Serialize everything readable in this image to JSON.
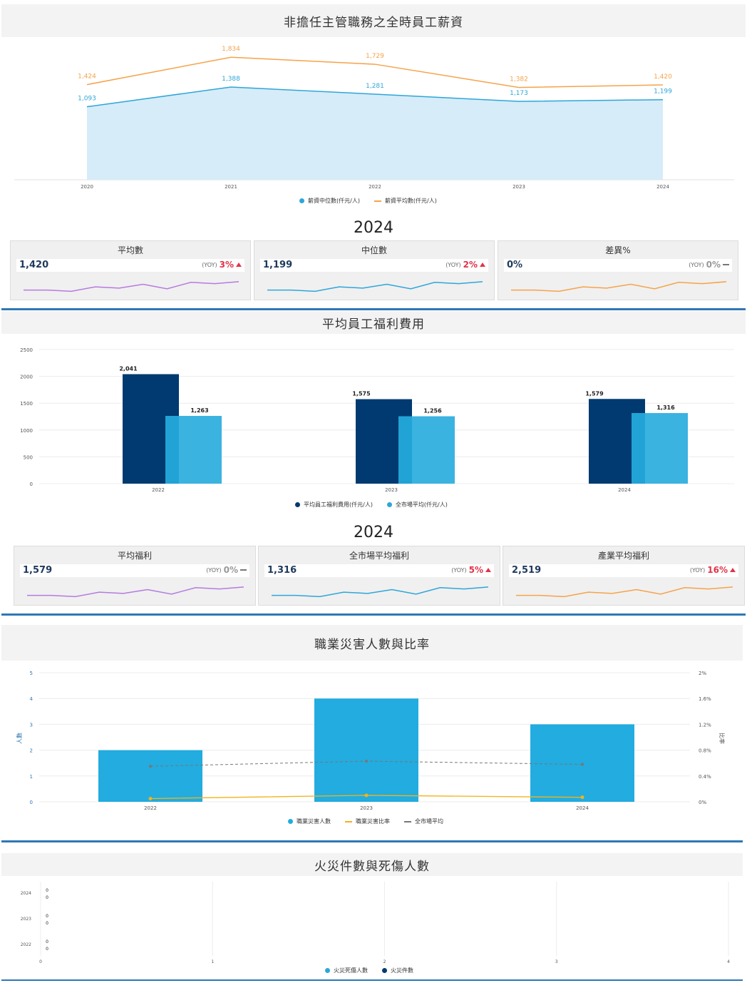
{
  "salary_section": {
    "title": "非擔任主管職務之全時員工薪資",
    "legend": {
      "median": "薪資中位數(仟元/人)",
      "mean": "薪資平均數(仟元/人)"
    },
    "kpi_year": "2024",
    "kpis": [
      {
        "title": "平均數",
        "value": "1,420",
        "yoy_label": "(YOY)",
        "yoy": "3%",
        "trend": "up",
        "color": "#b57be0"
      },
      {
        "title": "中位數",
        "value": "1,199",
        "yoy_label": "(YOY)",
        "yoy": "2%",
        "trend": "up",
        "color": "#2ea6d9"
      },
      {
        "title": "差異%",
        "value": "0%",
        "yoy_label": "(YOY)",
        "yoy": "0%",
        "trend": "flat",
        "color": "#f5a34a"
      }
    ]
  },
  "welfare_section": {
    "title": "平均員工福利費用",
    "legend": {
      "company": "平均員工福利費用(仟元/人)",
      "market": "全市場平均(仟元/人)"
    },
    "kpi_year": "2024",
    "kpis": [
      {
        "title": "平均福利",
        "value": "1,579",
        "yoy_label": "(YOY)",
        "yoy": "0%",
        "trend": "flat",
        "color": "#b57be0"
      },
      {
        "title": "全市場平均福利",
        "value": "1,316",
        "yoy_label": "(YOY)",
        "yoy": "5%",
        "trend": "up",
        "color": "#2ea6d9"
      },
      {
        "title": "產業平均福利",
        "value": "2,519",
        "yoy_label": "(YOY)",
        "yoy": "16%",
        "trend": "up",
        "color": "#f5a34a"
      }
    ]
  },
  "injury_section": {
    "title": "職業災害人數與比率",
    "legend": {
      "count": "職業災害人數",
      "rate": "職業災害比率",
      "market": "全市場平均"
    }
  },
  "fire_section": {
    "title": "火災件數與死傷人數",
    "legend": {
      "casualties": "火災死傷人數",
      "fires": "火災件數"
    }
  },
  "colors": {
    "orange": "#f5a34a",
    "blue": "#2ea6d9",
    "area": "#d6ecf8",
    "navy": "#003a70",
    "bar_light": "#3bb3e0",
    "bar_mid": "#22a3d6",
    "injury_bar": "#22acdf",
    "injury_rate": "#f2b21b",
    "market_line": "#777777",
    "divider": "#2e77b5"
  },
  "chart_data": [
    {
      "type": "area",
      "x": [
        "2020",
        "2021",
        "2022",
        "2023",
        "2024"
      ],
      "series": [
        {
          "name": "薪資中位數(仟元/人)",
          "type": "area",
          "values": [
            1093,
            1388,
            1281,
            1173,
            1199
          ],
          "labels": [
            "1,093",
            "1,388",
            "1,281",
            "1,173",
            "1,199"
          ]
        },
        {
          "name": "薪資平均數(仟元/人)",
          "type": "line",
          "values": [
            1424,
            1834,
            1729,
            1382,
            1420
          ],
          "labels": [
            "1,424",
            "1,834",
            "1,729",
            "1,382",
            "1,420"
          ]
        }
      ],
      "ylim": [
        0,
        2050
      ],
      "grid": false,
      "legend": "bottom"
    },
    {
      "type": "bar",
      "categories": [
        "2022",
        "2023",
        "2024"
      ],
      "series": [
        {
          "name": "平均員工福利費用(仟元/人)",
          "values": [
            2041,
            1575,
            1579
          ],
          "labels": [
            "2,041",
            "1,575",
            "1,579"
          ]
        },
        {
          "name": "全市場平均(仟元/人)",
          "values": [
            1263,
            1256,
            1316
          ],
          "labels": [
            "1,263",
            "1,256",
            "1,316"
          ]
        }
      ],
      "yticks": [
        "0",
        "500",
        "1000",
        "1500",
        "2000",
        "2500"
      ],
      "ylim": [
        0,
        2500
      ],
      "grid": true,
      "legend": "bottom"
    },
    {
      "type": "bar",
      "categories": [
        "2022",
        "2023",
        "2024"
      ],
      "series": [
        {
          "name": "職業災害人數",
          "axis": "left",
          "values": [
            2,
            4,
            3
          ]
        },
        {
          "name": "職業災害比率",
          "type": "line",
          "axis": "right",
          "values": [
            0.05,
            0.1,
            0.07
          ]
        },
        {
          "name": "全市場平均",
          "type": "line",
          "axis": "right",
          "values": [
            0.55,
            0.63,
            0.58
          ]
        }
      ],
      "ylabel": "人數",
      "y2label": "比率",
      "yticks": [
        "0",
        "1",
        "2",
        "3",
        "4",
        "5"
      ],
      "y2ticks": [
        "0%",
        "0.4%",
        "0.8%",
        "1.2%",
        "1.6%",
        "2%"
      ],
      "ylim": [
        0,
        5
      ],
      "y2lim": [
        0,
        2
      ],
      "grid": true,
      "legend": "bottom"
    },
    {
      "type": "bar",
      "orientation": "horizontal",
      "categories": [
        "2024",
        "2023",
        "2022"
      ],
      "series": [
        {
          "name": "火災死傷人數",
          "values": [
            0,
            0,
            0
          ]
        },
        {
          "name": "火災件數",
          "values": [
            0,
            0,
            0
          ]
        }
      ],
      "xticks": [
        "0",
        "1",
        "2",
        "3",
        "4"
      ],
      "xlim": [
        0,
        4
      ],
      "grid": true,
      "legend": "bottom"
    }
  ],
  "sparkline": [
    0.3,
    0.3,
    0.2,
    0.55,
    0.45,
    0.75,
    0.4,
    0.9,
    0.8,
    0.95
  ]
}
